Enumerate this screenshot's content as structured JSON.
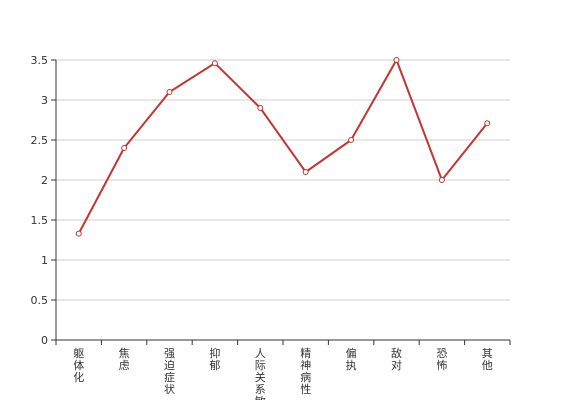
{
  "chart_data": {
    "type": "line",
    "categories": [
      "躯体化",
      "焦虑",
      "强迫症状",
      "抑郁",
      "人际关系敏感",
      "精神病性",
      "偏执",
      "敌对",
      "恐怖",
      "其他"
    ],
    "series": [
      {
        "values": [
          1.33,
          2.4,
          3.1,
          3.46,
          2.9,
          2.1,
          2.5,
          3.5,
          2.0,
          2.71
        ],
        "color": "#c23531"
      }
    ],
    "y_ticks": [
      "0",
      "0.5",
      "1",
      "1.5",
      "2",
      "2.5",
      "3",
      "3.5"
    ],
    "ylim": [
      0,
      3.5
    ],
    "grid": true,
    "xlabel": "",
    "ylabel": ""
  }
}
